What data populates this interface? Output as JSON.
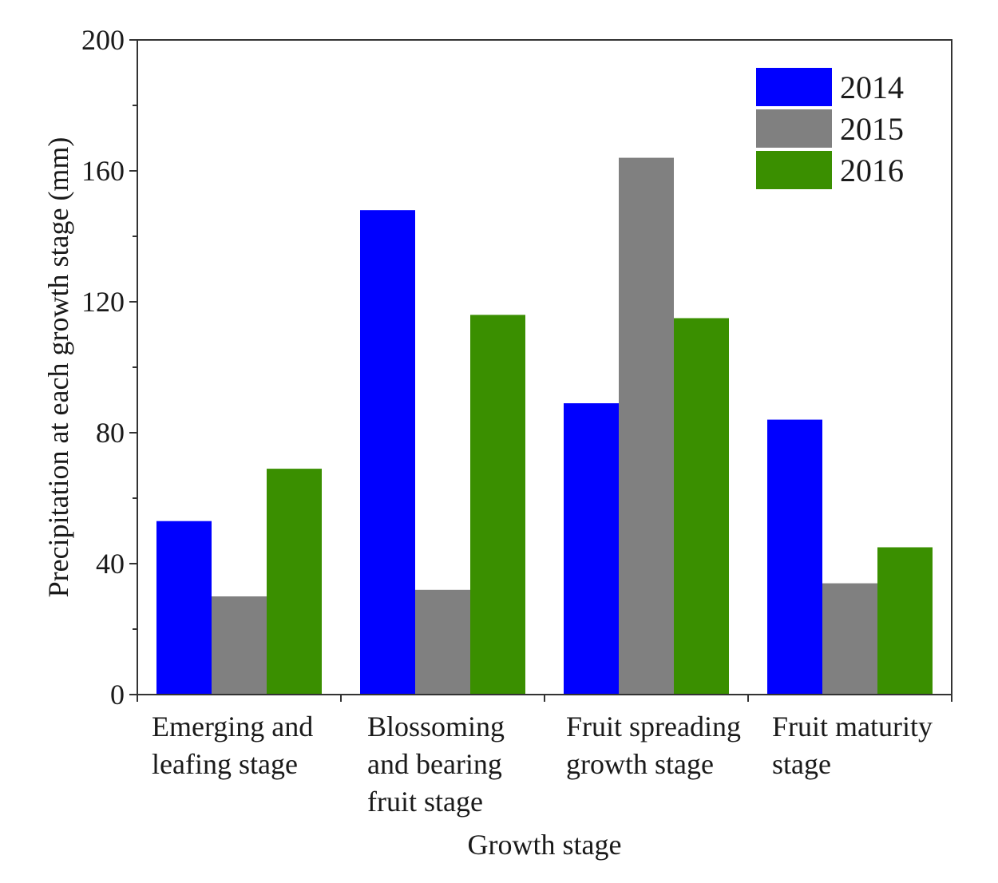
{
  "chart_data": {
    "type": "bar",
    "title": "",
    "xlabel": "Growth stage",
    "ylabel": "Precipitation at each growth stage (mm)",
    "ylim": [
      0,
      200
    ],
    "yticks": [
      0,
      40,
      80,
      120,
      160,
      200
    ],
    "categories": [
      [
        "Emerging and",
        "leafing stage"
      ],
      [
        "Blossoming",
        "and bearing",
        "fruit stage"
      ],
      [
        "Fruit spreading",
        "growth stage"
      ],
      [
        "Fruit maturity",
        "stage"
      ]
    ],
    "series": [
      {
        "name": "2014",
        "color": "#0000ff",
        "values": [
          53,
          148,
          89,
          84
        ]
      },
      {
        "name": "2015",
        "color": "#808080",
        "values": [
          30,
          32,
          164,
          34
        ]
      },
      {
        "name": "2016",
        "color": "#3a8f00",
        "values": [
          69,
          116,
          115,
          45
        ]
      }
    ],
    "legend": "top-right",
    "grid": false
  }
}
